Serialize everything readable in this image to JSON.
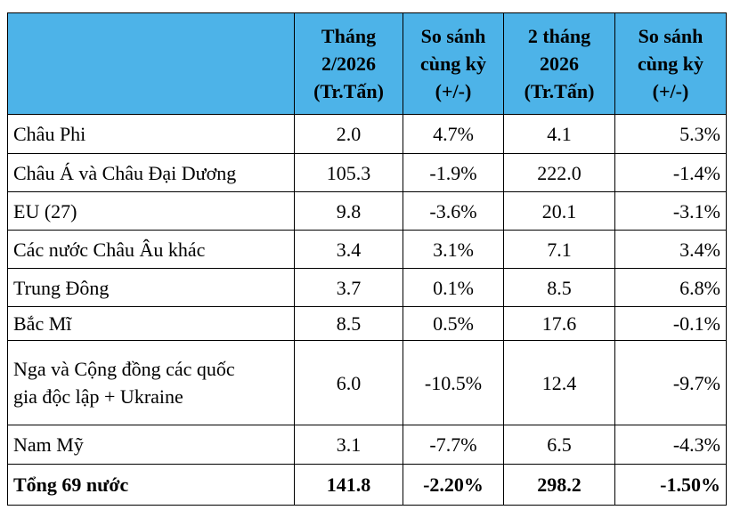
{
  "table": {
    "header": [
      [],
      [
        "Tháng",
        "2/2026",
        "(Tr.Tấn)"
      ],
      [
        "So sánh",
        "cùng kỳ",
        "(+/-)"
      ],
      [
        "2 tháng",
        "2026",
        "(Tr.Tấn)"
      ],
      [
        "So sánh",
        "cùng kỳ",
        "(+/-)"
      ]
    ],
    "rows": [
      {
        "label": [
          "Châu Phi"
        ],
        "cells": [
          "2.0",
          "4.7%",
          "4.1",
          "5.3%"
        ]
      },
      {
        "label": [
          "Châu Á và Châu Đại Dương"
        ],
        "cells": [
          "105.3",
          "-1.9%",
          "222.0",
          "-1.4%"
        ]
      },
      {
        "label": [
          "EU (27)"
        ],
        "cells": [
          "9.8",
          "-3.6%",
          "20.1",
          "-3.1%"
        ]
      },
      {
        "label": [
          "Các nước Châu Âu khác"
        ],
        "cells": [
          "3.4",
          "3.1%",
          "7.1",
          "3.4%"
        ]
      },
      {
        "label": [
          "Trung Đông"
        ],
        "cells": [
          "3.7",
          "0.1%",
          "8.5",
          "6.8%"
        ]
      },
      {
        "label": [
          "Bắc Mĩ"
        ],
        "cells": [
          "8.5",
          "0.5%",
          "17.6",
          "-0.1%"
        ]
      },
      {
        "label": [
          "Nga và Cộng đồng các quốc",
          "gia độc lập + Ukraine"
        ],
        "cells": [
          "6.0",
          "-10.5%",
          "12.4",
          "-9.7%"
        ]
      },
      {
        "label": [
          "Nam Mỹ"
        ],
        "cells": [
          "3.1",
          "-7.7%",
          "6.5",
          "-4.3%"
        ]
      }
    ],
    "total": {
      "label": [
        "Tổng 69 nước"
      ],
      "cells": [
        "141.8",
        "-2.20%",
        "298.2",
        "-1.50%"
      ]
    }
  }
}
